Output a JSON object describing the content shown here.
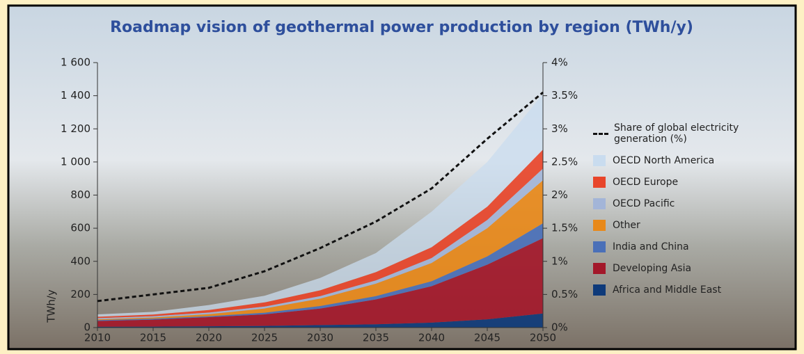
{
  "chart_data": {
    "type": "stacked-area",
    "title": "Roadmap vision of geothermal power production by region (TWh/y)",
    "y_label": "TWh/y",
    "x": [
      2010,
      2015,
      2020,
      2025,
      2030,
      2035,
      2040,
      2045,
      2050
    ],
    "xlim": [
      2010,
      2050
    ],
    "xticks": [
      2010,
      2015,
      2020,
      2025,
      2030,
      2035,
      2040,
      2045,
      2050
    ],
    "ylim": [
      0,
      1600
    ],
    "yticks": [
      0,
      200,
      400,
      600,
      800,
      {
        "value": 1000,
        "label": "1 000"
      },
      {
        "value": 1200,
        "label": "1 200"
      },
      {
        "value": 1400,
        "label": "1 400"
      },
      {
        "value": 1600,
        "label": "1 600"
      }
    ],
    "y2lim": [
      0,
      4
    ],
    "y2ticks": [
      {
        "value": 0,
        "label": "0%"
      },
      {
        "value": 0.5,
        "label": "0.5%"
      },
      {
        "value": 1,
        "label": "1%"
      },
      {
        "value": 1.5,
        "label": "1.5%"
      },
      {
        "value": 2,
        "label": "2%"
      },
      {
        "value": 2.5,
        "label": "2.5%"
      },
      {
        "value": 3,
        "label": "3%"
      },
      {
        "value": 3.5,
        "label": "3.5%"
      },
      {
        "value": 4,
        "label": "4%"
      }
    ],
    "series": [
      {
        "name": "Share of global electricity generation (%)",
        "type": "line",
        "axis": "y2",
        "color": "#111111",
        "values": [
          0.4,
          0.5,
          0.6,
          0.85,
          1.2,
          1.6,
          2.1,
          2.85,
          3.55
        ]
      },
      {
        "name": "OECD North America",
        "color": "#c9dcef",
        "values": [
          15,
          16,
          30,
          40,
          75,
          115,
          215,
          270,
          335
        ]
      },
      {
        "name": "OECD Europe",
        "color": "#e8452a",
        "values": [
          8,
          10,
          15,
          25,
          35,
          50,
          65,
          80,
          115
        ]
      },
      {
        "name": "OECD Pacific",
        "color": "#a3b5d8",
        "values": [
          7,
          8,
          10,
          12,
          15,
          20,
          30,
          50,
          70
        ]
      },
      {
        "name": "Other",
        "color": "#e8891a",
        "values": [
          5,
          7,
          12,
          25,
          45,
          75,
          110,
          170,
          260
        ]
      },
      {
        "name": "India and China",
        "color": "#4a70b8",
        "values": [
          5,
          6,
          6,
          10,
          15,
          20,
          30,
          50,
          90
        ]
      },
      {
        "name": "Developing Asia",
        "color": "#a3182a",
        "values": [
          35,
          42,
          55,
          70,
          100,
          150,
          220,
          330,
          455
        ]
      },
      {
        "name": "Africa and Middle East",
        "color": "#0e3a7a",
        "values": [
          5,
          6,
          8,
          10,
          15,
          20,
          30,
          50,
          85
        ]
      }
    ]
  }
}
